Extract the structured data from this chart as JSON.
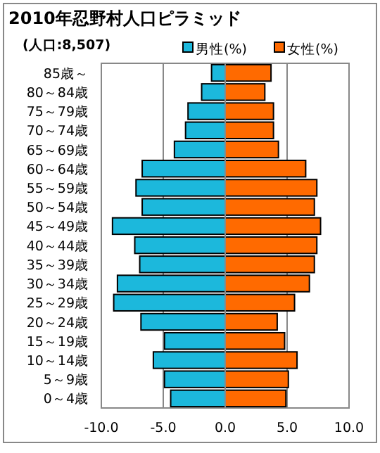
{
  "chart_data": {
    "type": "bar",
    "orientation": "horizontal",
    "stacked": true,
    "title": "2010年忍野村人口ピラミッド",
    "subtitle": "(人口:8,507)",
    "categories": [
      "85歳～",
      "80～84歳",
      "75～79歳",
      "70～74歳",
      "65～69歳",
      "60～64歳",
      "55～59歳",
      "50～54歳",
      "45～49歳",
      "40～44歳",
      "35～39歳",
      "30～34歳",
      "25～29歳",
      "20～24歳",
      "15～19歳",
      "10～14歳",
      "5～9歳",
      "0～4歳"
    ],
    "series": [
      {
        "name": "男性(%)",
        "color": "#1cb8dc",
        "values": [
          -1.1,
          -1.9,
          -3.0,
          -3.2,
          -4.1,
          -6.7,
          -7.2,
          -6.7,
          -9.1,
          -7.3,
          -6.9,
          -8.7,
          -9.0,
          -6.8,
          -4.9,
          -5.8,
          -4.9,
          -4.4
        ]
      },
      {
        "name": "女性(%)",
        "color": "#ff6a00",
        "values": [
          3.7,
          3.2,
          3.9,
          3.9,
          4.3,
          6.5,
          7.4,
          7.2,
          7.7,
          7.4,
          7.2,
          6.8,
          5.6,
          4.2,
          4.8,
          5.8,
          5.1,
          4.9
        ]
      }
    ],
    "xlim": [
      -10,
      10
    ],
    "xticks": [
      {
        "value": -10,
        "label": "-10.0"
      },
      {
        "value": -5,
        "label": "-5.0"
      },
      {
        "value": 0,
        "label": "0.0"
      },
      {
        "value": 5,
        "label": "5.0"
      },
      {
        "value": 10,
        "label": "10.0"
      }
    ],
    "grid": "x",
    "legend": "top"
  }
}
